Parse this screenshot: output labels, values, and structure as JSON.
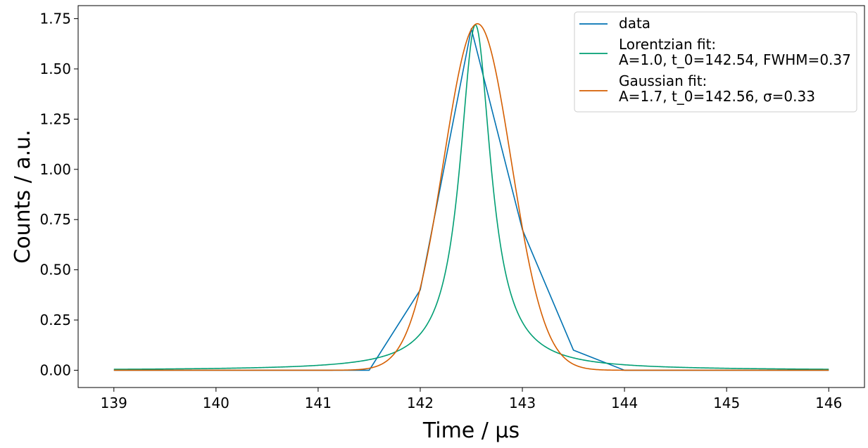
{
  "chart_data": {
    "type": "line",
    "xlabel": "Time / μs",
    "ylabel": "Counts / a.u.",
    "xlim": [
      138.65,
      146.35
    ],
    "ylim": [
      -0.086,
      1.815
    ],
    "xticks": [
      139,
      140,
      141,
      142,
      143,
      144,
      145,
      146
    ],
    "xtick_labels": [
      "139",
      "140",
      "141",
      "142",
      "143",
      "144",
      "145",
      "146"
    ],
    "yticks": [
      0.0,
      0.25,
      0.5,
      0.75,
      1.0,
      1.25,
      1.5,
      1.75
    ],
    "ytick_labels": [
      "0.00",
      "0.25",
      "0.50",
      "0.75",
      "1.00",
      "1.25",
      "1.50",
      "1.75"
    ],
    "grid": false,
    "legend_position": "top-right",
    "series": [
      {
        "name": "data",
        "color": "#0072B2",
        "x": [
          139,
          139.5,
          140,
          140.5,
          141,
          141.5,
          142,
          142.5,
          143,
          143.5,
          144,
          144.5,
          145,
          145.5,
          146
        ],
        "y": [
          0,
          0,
          0,
          0,
          0,
          0,
          0.4,
          1.7,
          0.7,
          0.1,
          0,
          0,
          0,
          0,
          0
        ]
      },
      {
        "name": "Lorentzian fit:",
        "name_line2": "A=1.0, t_0=142.54, FWHM=0.37",
        "color": "#009E73",
        "model": "lorentzian",
        "params": {
          "A": 1.0,
          "t_0": 142.54,
          "FWHM": 0.37
        },
        "x_range": [
          139,
          146
        ]
      },
      {
        "name": "Gaussian fit:",
        "name_line2": "A=1.7, t_0=142.56, σ=0.33",
        "color": "#D55E00",
        "model": "gaussian",
        "params": {
          "A": 1.7,
          "t_0": 142.56,
          "sigma": 0.33
        },
        "x_range": [
          139,
          146
        ]
      }
    ]
  }
}
